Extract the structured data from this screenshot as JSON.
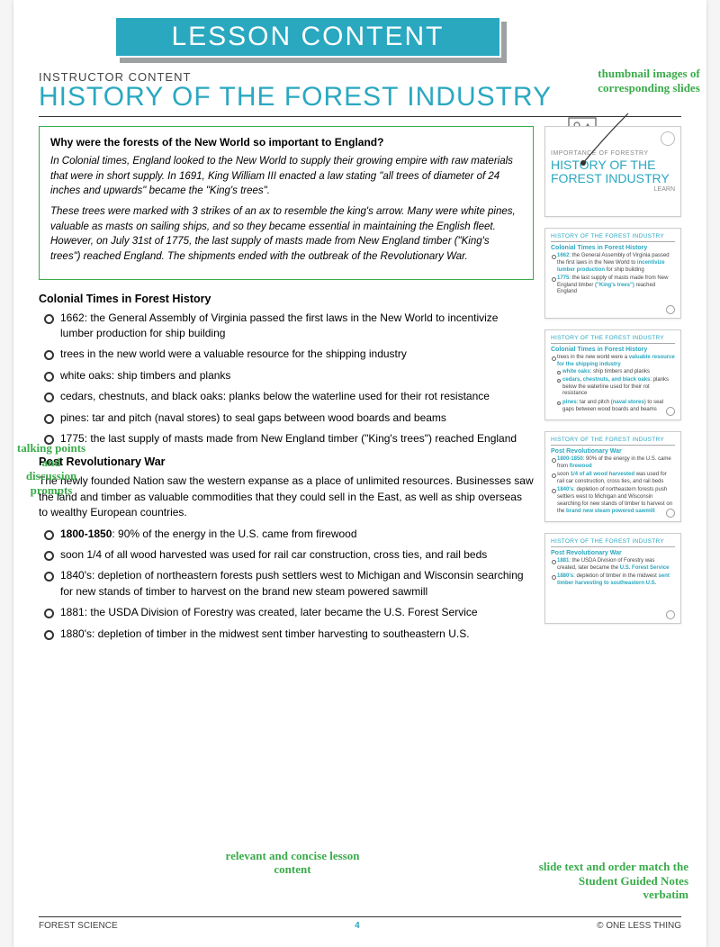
{
  "banner": "LESSON CONTENT",
  "instructor_label": "INSTRUCTOR CONTENT",
  "title": "HISTORY OF THE FOREST INDUSTRY",
  "greenbox": {
    "question": "Why were the forests of the New World so important to England?",
    "p1": "In Colonial times, England looked to the New World to supply their growing empire with raw materials that were in short supply. In 1691, King William III enacted a law stating \"all trees of diameter of 24 inches and upwards\" became the \"King's trees\".",
    "p2": "These trees were marked with 3 strikes of an ax to resemble the king's arrow. Many were white pines, valuable as masts on sailing ships, and so they became essential in maintaining the English fleet. However, on July 31st of 1775, the last supply of masts made from New England timber (\"King's trees\") reached England. The shipments ended with the outbreak of the Revolutionary War."
  },
  "sections": [
    {
      "title": "Colonial Times in Forest History",
      "bullets": [
        "1662: the General Assembly of Virginia passed the first laws in the New World to incentivize lumber production for ship building",
        "trees in the new world were a valuable resource for the shipping industry",
        "white oaks: ship timbers and planks",
        "cedars, chestnuts, and black oaks: planks below the waterline used for their rot resistance",
        "pines: tar and pitch (naval stores) to seal gaps between wood boards and beams",
        "1775: the last supply of masts made from New England timber (\"King's trees\") reached England"
      ]
    },
    {
      "title": "Post Revolutionary War",
      "intro": "The newly founded Nation saw the western expanse as a place of unlimited resources. Businesses saw the land and timber as valuable commodities that they could sell in the East, as well as ship overseas to wealthy European countries.",
      "bullets_html": [
        "<b>1800-1850</b>: 90% of the energy in the U.S. came from firewood",
        "soon 1/4 of all wood harvested was used for rail car construction, cross ties, and rail beds",
        "1840's: depletion of northeastern forests push settlers west to Michigan and Wisconsin searching for new stands of timber to harvest on the brand new steam powered sawmill",
        "1881: the USDA Division of Forestry was created, later became the U.S. Forest Service",
        "1880's: depletion of timber in the midwest sent timber harvesting to southeastern U.S."
      ]
    }
  ],
  "callouts": {
    "c1": "thumbnail images of corresponding slides",
    "c2": "talking points and discussion prompts",
    "c3": "relevant and concise lesson content",
    "c4": "slide text and order match the Student Guided Notes verbatim"
  },
  "thumbs": {
    "cover": {
      "label": "IMPORTANCE OF FORESTRY",
      "title": "HISTORY OF THE FOREST INDUSTRY",
      "learn": "LEARN"
    },
    "head": "HISTORY OF THE FOREST INDUSTRY",
    "t2": {
      "sub": "Colonial Times in Forest History",
      "items": [
        "<b>1662</b>: the General Assembly of Virginia passed the first laws in the New World to <b>incentivize lumber production</b> for ship building",
        "<b>1775</b>: the last supply of masts made from New England timber <b>(\"King's trees\")</b> reached England"
      ]
    },
    "t3": {
      "sub": "Colonial Times in Forest History",
      "lead": "trees in the new world were a <b>valuable resource for the shipping industry</b>",
      "items": [
        "<b>white oaks</b>: ship timbers and planks",
        "<b>cedars, chestnuts, and black oaks</b>: planks below the waterline used for their rot resistance",
        "<b>pines</b>: tar and pitch (<b>naval stores</b>) to seal gaps between wood boards and beams"
      ]
    },
    "t4": {
      "sub": "Post Revolutionary War",
      "items": [
        "<b>1800-1850</b>: 90% of the energy in the U.S. came from <b>firewood</b>",
        "soon <b>1/4 of all wood harvested</b> was used for rail car construction, cross ties, and rail beds",
        "<b>1840's</b>: depletion of northeastern forests push settlers west to Michigan and Wisconsin searching for new stands of timber to harvest on the <b>brand new steam powered sawmill</b>"
      ]
    },
    "t5": {
      "sub": "Post Revolutionary War",
      "items": [
        "<b>1881</b>: the USDA Division of Forestry was created, later became the <b>U.S. Forest Service</b>",
        "<b>1880's</b>: depletion of timber in the midwest <b>sent timber harvesting to southeastern U.S.</b>"
      ]
    }
  },
  "footer": {
    "left": "FOREST SCIENCE",
    "mid": "4",
    "right": "© ONE LESS THING"
  },
  "colors": {
    "teal": "#2aa8c0",
    "green": "#3aab4a",
    "grey": "#9da1a2"
  }
}
